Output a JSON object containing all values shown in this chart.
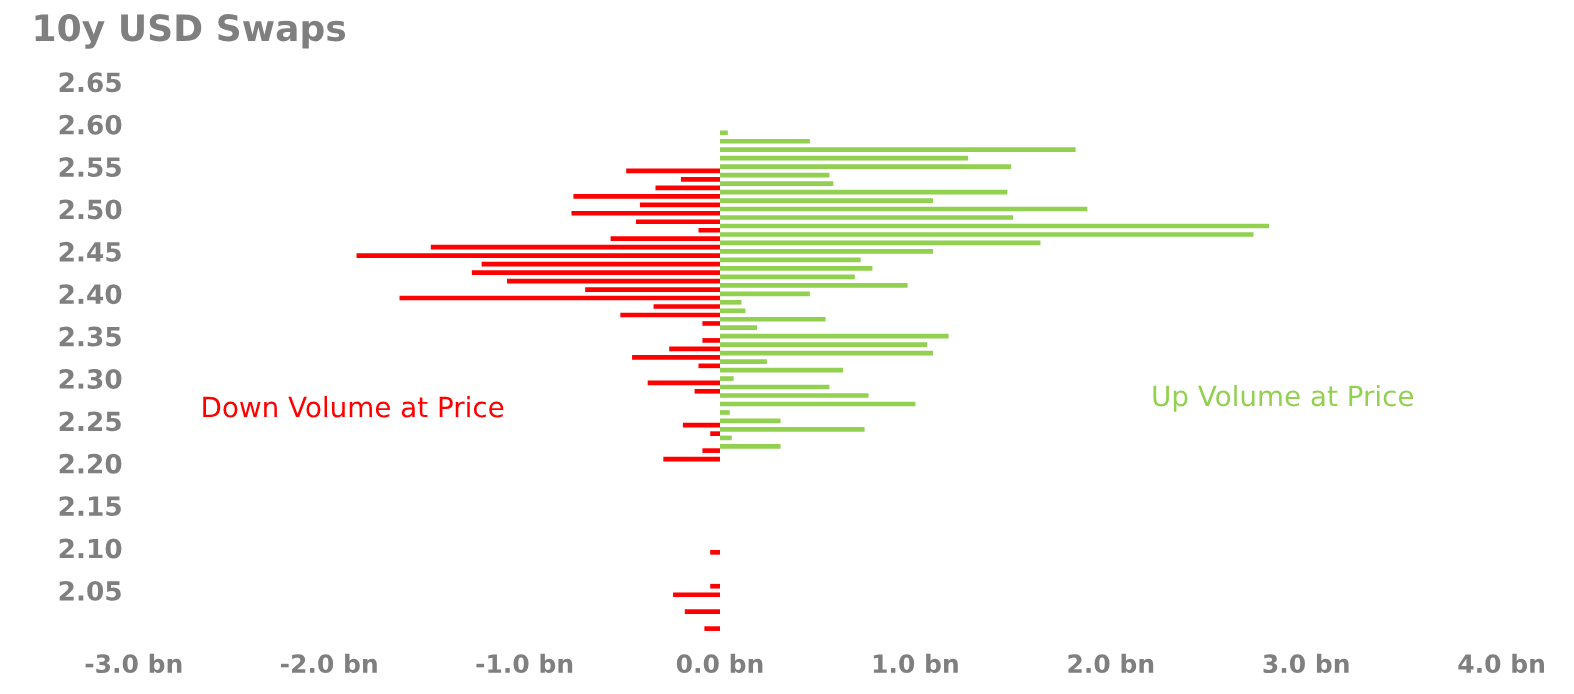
{
  "chart_data": {
    "type": "bar",
    "orientation": "horizontal",
    "title": "10y USD Swaps",
    "series": [
      {
        "name": "Down Volume at Price",
        "color": "#ff0000",
        "x": [
          2.545,
          2.535,
          2.525,
          2.515,
          2.505,
          2.495,
          2.485,
          2.475,
          2.465,
          2.455,
          2.445,
          2.435,
          2.425,
          2.415,
          2.405,
          2.395,
          2.385,
          2.375,
          2.365,
          2.345,
          2.335,
          2.325,
          2.315,
          2.295,
          2.285,
          2.245,
          2.235,
          2.215,
          2.205,
          2.095,
          2.055,
          2.045,
          2.025,
          2.005
        ],
        "values": [
          -0.48,
          -0.2,
          -0.33,
          -0.75,
          -0.41,
          -0.76,
          -0.43,
          -0.11,
          -0.56,
          -1.48,
          -1.86,
          -1.22,
          -1.27,
          -1.09,
          -0.69,
          -1.64,
          -0.34,
          -0.51,
          -0.09,
          -0.09,
          -0.26,
          -0.45,
          -0.11,
          -0.37,
          -0.13,
          -0.19,
          -0.05,
          -0.09,
          -0.29,
          -0.05,
          -0.05,
          -0.24,
          -0.18,
          -0.08
        ]
      },
      {
        "name": "Up Volume at Price",
        "color": "#92d050",
        "x": [
          2.59,
          2.58,
          2.57,
          2.56,
          2.55,
          2.54,
          2.53,
          2.52,
          2.51,
          2.5,
          2.49,
          2.48,
          2.47,
          2.46,
          2.45,
          2.44,
          2.43,
          2.42,
          2.41,
          2.4,
          2.39,
          2.38,
          2.37,
          2.36,
          2.35,
          2.34,
          2.33,
          2.32,
          2.31,
          2.3,
          2.29,
          2.28,
          2.27,
          2.26,
          2.25,
          2.24,
          2.23,
          2.22
        ],
        "values": [
          0.04,
          0.46,
          1.82,
          1.27,
          1.49,
          0.56,
          0.58,
          1.47,
          1.09,
          1.88,
          1.5,
          2.81,
          2.73,
          1.64,
          1.09,
          0.72,
          0.78,
          0.69,
          0.96,
          0.46,
          0.11,
          0.13,
          0.54,
          0.19,
          1.17,
          1.06,
          1.09,
          0.24,
          0.63,
          0.07,
          0.56,
          0.76,
          1.0,
          0.05,
          0.31,
          0.74,
          0.06,
          0.31
        ]
      }
    ],
    "xlim": [
      -3,
      4
    ],
    "xticks": [
      {
        "value": -3,
        "label": "-3.0 bn"
      },
      {
        "value": -2,
        "label": "-2.0 bn"
      },
      {
        "value": -1,
        "label": "-1.0 bn"
      },
      {
        "value": 0,
        "label": "0.0 bn"
      },
      {
        "value": 1,
        "label": "1.0 bn"
      },
      {
        "value": 2,
        "label": "2.0 bn"
      },
      {
        "value": 3,
        "label": "3.0 bn"
      },
      {
        "value": 4,
        "label": "4.0 bn"
      }
    ],
    "ylim": [
      1.995,
      2.65
    ],
    "yticks": [
      {
        "value": 2.05,
        "label": "2.05"
      },
      {
        "value": 2.1,
        "label": "2.10"
      },
      {
        "value": 2.15,
        "label": "2.15"
      },
      {
        "value": 2.2,
        "label": "2.20"
      },
      {
        "value": 2.25,
        "label": "2.25"
      },
      {
        "value": 2.3,
        "label": "2.30"
      },
      {
        "value": 2.35,
        "label": "2.35"
      },
      {
        "value": 2.4,
        "label": "2.40"
      },
      {
        "value": 2.45,
        "label": "2.45"
      },
      {
        "value": 2.5,
        "label": "2.50"
      },
      {
        "value": 2.55,
        "label": "2.55"
      },
      {
        "value": 2.6,
        "label": "2.60"
      },
      {
        "value": 2.65,
        "label": "2.65"
      }
    ],
    "grid": false,
    "legend": false
  }
}
